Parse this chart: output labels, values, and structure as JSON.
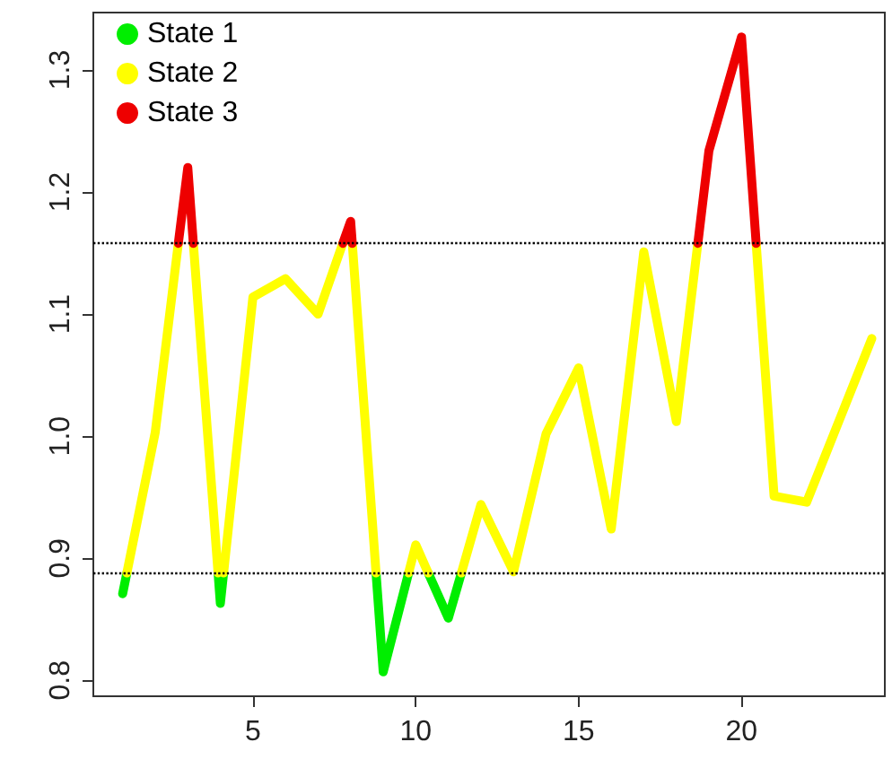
{
  "chart_data": {
    "type": "line",
    "series": [
      {
        "name": "State 1",
        "color": "#00ee00",
        "x": [
          1,
          1.13,
          2,
          3.93,
          4,
          4.1,
          6,
          8.78,
          9,
          9.78,
          10,
          10.38,
          11,
          11.4
        ],
        "values": [
          0.871,
          0.888,
          null,
          0.888,
          0.863,
          0.888,
          null,
          0.888,
          0.807,
          0.888,
          null,
          0.888,
          0.851,
          0.888
        ]
      },
      {
        "name": "State 2",
        "color": "#ffff00",
        "x": [
          1.13,
          2,
          2.71,
          3,
          3.17,
          3.93,
          4,
          4.1,
          5,
          6,
          7,
          7.76,
          8,
          8.05,
          8.78,
          9,
          9.78,
          10,
          10.38,
          11,
          11.4,
          12,
          13,
          14,
          15,
          16,
          17,
          18,
          18.66,
          19.5,
          20.45,
          21,
          22,
          23,
          24
        ],
        "values": [
          0.888,
          1.003,
          1.158,
          null,
          1.158,
          0.888,
          null,
          0.888,
          1.114,
          1.129,
          1.1,
          1.158,
          null,
          1.158,
          0.888,
          null,
          0.888,
          0.911,
          0.888,
          null,
          0.888,
          0.944,
          0.889,
          1.002,
          1.056,
          0.924,
          1.151,
          1.012,
          1.158,
          null,
          1.158,
          0.951,
          0.946,
          1.013,
          1.08
        ]
      },
      {
        "name": "State 3",
        "color": "#ee0000",
        "x": [
          2.71,
          3,
          3.17,
          5,
          7.76,
          8,
          8.05,
          12,
          18.66,
          19,
          20,
          20.45
        ],
        "values": [
          1.158,
          1.22,
          1.158,
          null,
          1.158,
          1.176,
          1.158,
          null,
          1.158,
          1.234,
          1.327,
          1.158
        ]
      }
    ],
    "xlim": [
      0.1,
      24.4
    ],
    "xticks": [
      5,
      10,
      15,
      20
    ],
    "ylim": [
      0.787,
      1.347
    ],
    "yticks": [
      0.8,
      0.9,
      {
        "value": 1,
        "label": "1.0"
      },
      1.1,
      1.2,
      1.3
    ],
    "ref_lines": [
      {
        "axis": "y",
        "value": 0.888,
        "color": "#000000",
        "line_style": "dotted"
      },
      {
        "axis": "y",
        "value": 1.158,
        "color": "#000000",
        "line_style": "dotted"
      }
    ],
    "legend": "top left",
    "grid": false,
    "marker": "none",
    "line_style": "solid"
  }
}
